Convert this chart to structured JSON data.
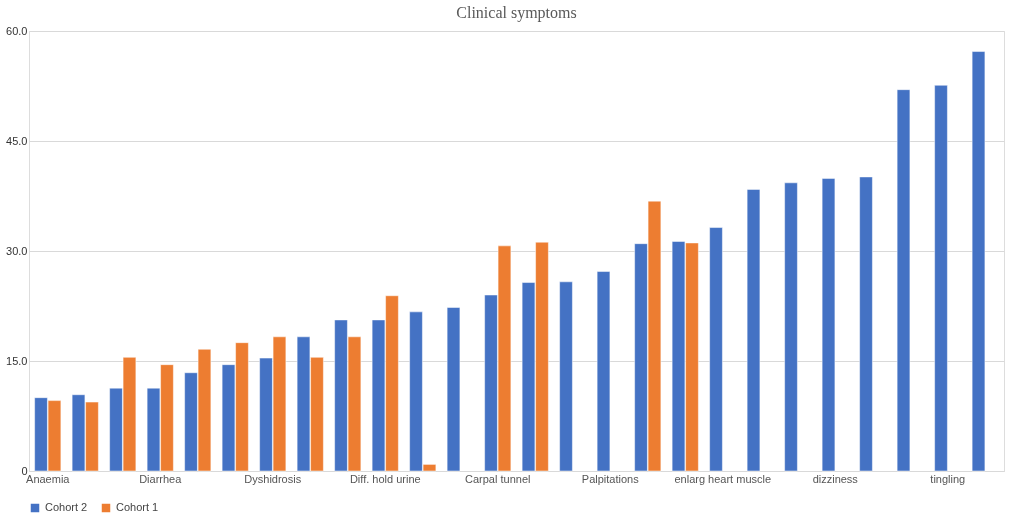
{
  "chart_data": {
    "type": "bar",
    "title": "Clinical symptoms",
    "categories": [
      "Anaemia",
      null,
      null,
      "Diarrhea",
      null,
      null,
      "Dyshidrosis",
      null,
      null,
      "Diff. hold urine",
      null,
      null,
      "Carpal tunnel",
      null,
      null,
      "Palpitations",
      null,
      null,
      "enlarg heart muscle",
      null,
      null,
      "dizziness",
      null,
      null,
      "tingling",
      null
    ],
    "series": [
      {
        "name": "Cohort 2",
        "color": "#4472c4",
        "values": [
          10.0,
          10.4,
          11.3,
          11.3,
          13.4,
          14.5,
          15.4,
          18.3,
          20.6,
          20.6,
          21.7,
          22.3,
          24.0,
          25.7,
          25.8,
          27.2,
          31.0,
          31.3,
          33.2,
          38.4,
          39.3,
          39.9,
          40.1,
          52.0,
          52.6,
          57.2
        ]
      },
      {
        "name": "Cohort 1",
        "color": "#ed7d31",
        "values": [
          9.6,
          9.4,
          15.5,
          14.5,
          16.6,
          17.5,
          18.3,
          15.5,
          18.3,
          23.9,
          0.9,
          null,
          30.7,
          31.2,
          null,
          null,
          36.8,
          31.1,
          null,
          null,
          null,
          null,
          null,
          null,
          null,
          null
        ]
      }
    ],
    "ylim": [
      0,
      60
    ],
    "yticks": [
      0,
      {
        "value": 15,
        "label": "15.0"
      },
      {
        "value": 30,
        "label": "30.0"
      },
      {
        "value": 45,
        "label": "45.0"
      },
      {
        "value": 60,
        "label": "60.0"
      }
    ],
    "grid": "y",
    "legend": "bottom"
  }
}
